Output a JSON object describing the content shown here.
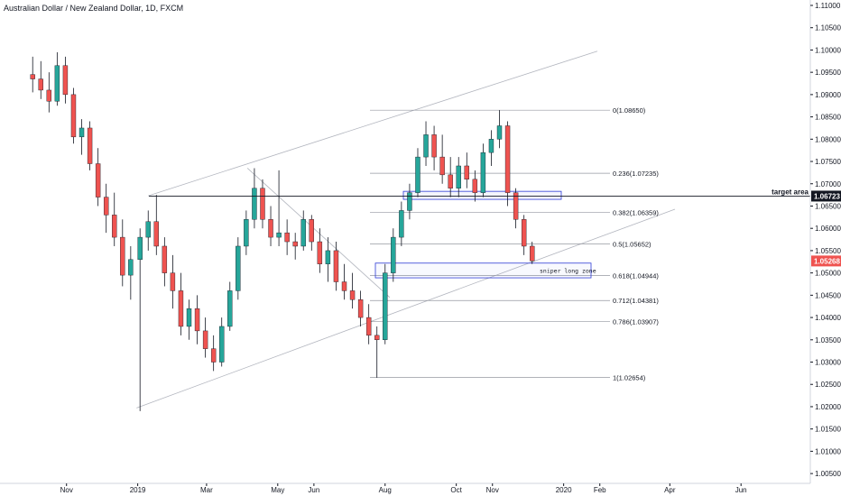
{
  "chart_data": {
    "type": "candlestick",
    "title": "Australian Dollar / New Zealand Dollar, 1D, FXCM",
    "ylim": [
      1.003,
      1.11
    ],
    "y_ticks": [
      "1.11000",
      "1.10500",
      "1.10000",
      "1.09500",
      "1.09000",
      "1.08500",
      "1.08000",
      "1.07500",
      "1.07000",
      "1.06500",
      "1.06000",
      "1.05500",
      "1.05000",
      "1.04500",
      "1.04000",
      "1.03500",
      "1.03000",
      "1.02500",
      "1.02000",
      "1.01500",
      "1.01000",
      "1.00500"
    ],
    "x_ticks": [
      "Nov",
      "2019",
      "Mar",
      "May",
      "Jun",
      "Aug",
      "Oct",
      "Nov",
      "2020",
      "Feb",
      "Apr",
      "Jun"
    ],
    "fib_levels": [
      {
        "label": "0(1.08650)",
        "value": 1.0865
      },
      {
        "label": "0.236(1.07235)",
        "value": 1.07235
      },
      {
        "label": "0.382(1.06359)",
        "value": 1.06359
      },
      {
        "label": "0.5(1.05652)",
        "value": 1.05652
      },
      {
        "label": "0.618(1.04944)",
        "value": 1.04944
      },
      {
        "label": "0.712(1.04381)",
        "value": 1.04381
      },
      {
        "label": "0.786(1.03907)",
        "value": 1.03907
      },
      {
        "label": "1(1.02654)",
        "value": 1.02654
      }
    ],
    "horizontal_line": {
      "label": "target area",
      "value": 1.06723
    },
    "last_price": {
      "label": "1.05268",
      "value": 1.05268
    },
    "annotation": {
      "text": "sniper long zone"
    },
    "zones": [
      {
        "name": "target-zone",
        "y_top": 1.0683,
        "y_bottom": 1.0665
      },
      {
        "name": "long-zone",
        "y_top": 1.0522,
        "y_bottom": 1.0489
      }
    ],
    "colors": {
      "up": "#26a69a",
      "down": "#ef5350",
      "wick": "#131722",
      "trend": "#b2b5be",
      "fib": "#9598a1",
      "zone": "#2e3bd6",
      "price_tag": "#ef5350",
      "target_tag": "#131722"
    },
    "series": [
      {
        "x": "2018-10-03",
        "open": 1.0945,
        "high": 1.0985,
        "low": 1.0905,
        "close": 1.0935
      },
      {
        "x": "2018-10-10",
        "open": 1.0935,
        "high": 1.0975,
        "low": 1.089,
        "close": 1.091
      },
      {
        "x": "2018-10-17",
        "open": 1.091,
        "high": 1.095,
        "low": 1.086,
        "close": 1.0885
      },
      {
        "x": "2018-10-24",
        "open": 1.0885,
        "high": 1.0995,
        "low": 1.0875,
        "close": 1.0965
      },
      {
        "x": "2018-10-31",
        "open": 1.0965,
        "high": 1.0985,
        "low": 1.088,
        "close": 1.09
      },
      {
        "x": "2018-11-07",
        "open": 1.09,
        "high": 1.0915,
        "low": 1.079,
        "close": 1.0805
      },
      {
        "x": "2018-11-14",
        "open": 1.0805,
        "high": 1.0845,
        "low": 1.0765,
        "close": 1.0825
      },
      {
        "x": "2018-11-21",
        "open": 1.0825,
        "high": 1.084,
        "low": 1.073,
        "close": 1.0745
      },
      {
        "x": "2018-11-28",
        "open": 1.0745,
        "high": 1.078,
        "low": 1.065,
        "close": 1.067
      },
      {
        "x": "2018-12-05",
        "open": 1.067,
        "high": 1.07,
        "low": 1.059,
        "close": 1.063
      },
      {
        "x": "2018-12-12",
        "open": 1.063,
        "high": 1.068,
        "low": 1.056,
        "close": 1.058
      },
      {
        "x": "2018-12-19",
        "open": 1.058,
        "high": 1.062,
        "low": 1.047,
        "close": 1.0495
      },
      {
        "x": "2018-12-26",
        "open": 1.0495,
        "high": 1.056,
        "low": 1.044,
        "close": 1.053
      },
      {
        "x": "2019-01-03",
        "open": 1.053,
        "high": 1.06,
        "low": 1.019,
        "close": 1.058
      },
      {
        "x": "2019-01-10",
        "open": 1.058,
        "high": 1.064,
        "low": 1.055,
        "close": 1.0615
      },
      {
        "x": "2019-01-17",
        "open": 1.0615,
        "high": 1.0675,
        "low": 1.054,
        "close": 1.056
      },
      {
        "x": "2019-01-24",
        "open": 1.056,
        "high": 1.058,
        "low": 1.047,
        "close": 1.05
      },
      {
        "x": "2019-01-31",
        "open": 1.05,
        "high": 1.054,
        "low": 1.042,
        "close": 1.046
      },
      {
        "x": "2019-02-07",
        "open": 1.046,
        "high": 1.05,
        "low": 1.036,
        "close": 1.038
      },
      {
        "x": "2019-02-14",
        "open": 1.038,
        "high": 1.044,
        "low": 1.035,
        "close": 1.042
      },
      {
        "x": "2019-02-21",
        "open": 1.042,
        "high": 1.045,
        "low": 1.034,
        "close": 1.037
      },
      {
        "x": "2019-02-28",
        "open": 1.037,
        "high": 1.04,
        "low": 1.031,
        "close": 1.033
      },
      {
        "x": "2019-03-07",
        "open": 1.033,
        "high": 1.036,
        "low": 1.028,
        "close": 1.03
      },
      {
        "x": "2019-03-14",
        "open": 1.03,
        "high": 1.04,
        "low": 1.029,
        "close": 1.038
      },
      {
        "x": "2019-03-21",
        "open": 1.038,
        "high": 1.048,
        "low": 1.037,
        "close": 1.046
      },
      {
        "x": "2019-03-28",
        "open": 1.046,
        "high": 1.058,
        "low": 1.044,
        "close": 1.056
      },
      {
        "x": "2019-04-04",
        "open": 1.056,
        "high": 1.064,
        "low": 1.054,
        "close": 1.062
      },
      {
        "x": "2019-04-11",
        "open": 1.062,
        "high": 1.0735,
        "low": 1.06,
        "close": 1.069
      },
      {
        "x": "2019-04-18",
        "open": 1.069,
        "high": 1.071,
        "low": 1.06,
        "close": 1.062
      },
      {
        "x": "2019-04-25",
        "open": 1.062,
        "high": 1.065,
        "low": 1.056,
        "close": 1.058
      },
      {
        "x": "2019-05-02",
        "open": 1.058,
        "high": 1.073,
        "low": 1.056,
        "close": 1.059
      },
      {
        "x": "2019-05-09",
        "open": 1.059,
        "high": 1.062,
        "low": 1.054,
        "close": 1.057
      },
      {
        "x": "2019-05-16",
        "open": 1.057,
        "high": 1.059,
        "low": 1.053,
        "close": 1.056
      },
      {
        "x": "2019-05-23",
        "open": 1.056,
        "high": 1.064,
        "low": 1.055,
        "close": 1.062
      },
      {
        "x": "2019-05-30",
        "open": 1.062,
        "high": 1.063,
        "low": 1.055,
        "close": 1.057
      },
      {
        "x": "2019-06-06",
        "open": 1.057,
        "high": 1.06,
        "low": 1.05,
        "close": 1.052
      },
      {
        "x": "2019-06-13",
        "open": 1.052,
        "high": 1.058,
        "low": 1.048,
        "close": 1.055
      },
      {
        "x": "2019-06-20",
        "open": 1.055,
        "high": 1.057,
        "low": 1.046,
        "close": 1.048
      },
      {
        "x": "2019-06-27",
        "open": 1.048,
        "high": 1.052,
        "low": 1.044,
        "close": 1.046
      },
      {
        "x": "2019-07-04",
        "open": 1.046,
        "high": 1.05,
        "low": 1.042,
        "close": 1.044
      },
      {
        "x": "2019-07-11",
        "open": 1.044,
        "high": 1.046,
        "low": 1.038,
        "close": 1.04
      },
      {
        "x": "2019-07-18",
        "open": 1.04,
        "high": 1.043,
        "low": 1.034,
        "close": 1.036
      },
      {
        "x": "2019-07-25",
        "open": 1.036,
        "high": 1.038,
        "low": 1.0265,
        "close": 1.035
      },
      {
        "x": "2019-08-01",
        "open": 1.035,
        "high": 1.052,
        "low": 1.034,
        "close": 1.05
      },
      {
        "x": "2019-08-08",
        "open": 1.05,
        "high": 1.06,
        "low": 1.048,
        "close": 1.058
      },
      {
        "x": "2019-08-15",
        "open": 1.058,
        "high": 1.066,
        "low": 1.056,
        "close": 1.064
      },
      {
        "x": "2019-08-22",
        "open": 1.064,
        "high": 1.07,
        "low": 1.062,
        "close": 1.068
      },
      {
        "x": "2019-08-29",
        "open": 1.068,
        "high": 1.078,
        "low": 1.067,
        "close": 1.076
      },
      {
        "x": "2019-09-05",
        "open": 1.076,
        "high": 1.084,
        "low": 1.074,
        "close": 1.081
      },
      {
        "x": "2019-09-12",
        "open": 1.081,
        "high": 1.083,
        "low": 1.073,
        "close": 1.076
      },
      {
        "x": "2019-09-19",
        "open": 1.076,
        "high": 1.081,
        "low": 1.07,
        "close": 1.072
      },
      {
        "x": "2019-09-26",
        "open": 1.072,
        "high": 1.076,
        "low": 1.067,
        "close": 1.069
      },
      {
        "x": "2019-10-03",
        "open": 1.069,
        "high": 1.076,
        "low": 1.067,
        "close": 1.074
      },
      {
        "x": "2019-10-10",
        "open": 1.074,
        "high": 1.077,
        "low": 1.069,
        "close": 1.071
      },
      {
        "x": "2019-10-17",
        "open": 1.071,
        "high": 1.073,
        "low": 1.066,
        "close": 1.068
      },
      {
        "x": "2019-10-24",
        "open": 1.068,
        "high": 1.079,
        "low": 1.067,
        "close": 1.077
      },
      {
        "x": "2019-10-31",
        "open": 1.077,
        "high": 1.082,
        "low": 1.074,
        "close": 1.08
      },
      {
        "x": "2019-11-07",
        "open": 1.08,
        "high": 1.0865,
        "low": 1.078,
        "close": 1.083
      },
      {
        "x": "2019-11-14",
        "open": 1.083,
        "high": 1.084,
        "low": 1.065,
        "close": 1.068
      },
      {
        "x": "2019-11-21",
        "open": 1.068,
        "high": 1.069,
        "low": 1.06,
        "close": 1.062
      },
      {
        "x": "2019-11-28",
        "open": 1.062,
        "high": 1.063,
        "low": 1.054,
        "close": 1.056
      },
      {
        "x": "2019-12-05",
        "open": 1.056,
        "high": 1.057,
        "low": 1.052,
        "close": 1.0527
      }
    ]
  }
}
